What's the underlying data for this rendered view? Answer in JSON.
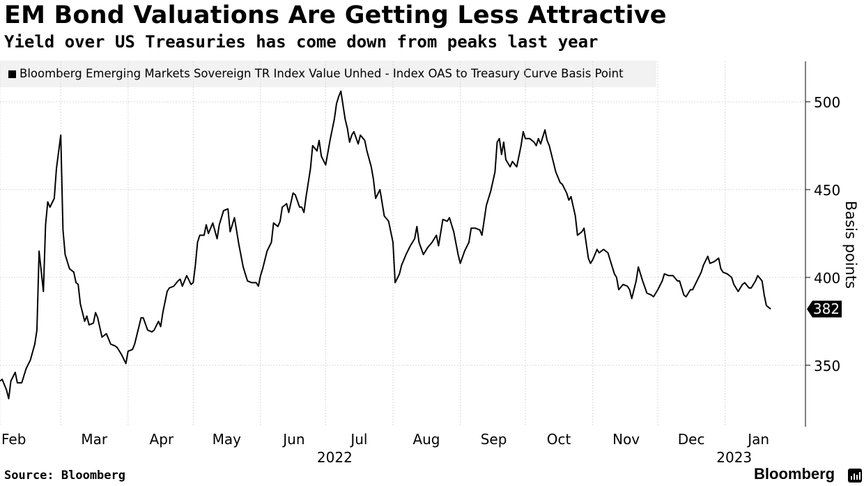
{
  "chart_data": {
    "type": "line",
    "title": "EM Bond Valuations Are Getting Less Attractive",
    "subtitle": "Yield over US Treasuries has come down from peaks last year",
    "ylabel": "Basis points",
    "ylim": [
      315,
      523
    ],
    "yticks": [
      350,
      400,
      450,
      500
    ],
    "grid": true,
    "legend_position": "top-left",
    "x_start": "2022-02-01",
    "x_end": "2023-02-07",
    "month_ticks": [
      {
        "date": "2022-02-01",
        "label": "Feb"
      },
      {
        "date": "2022-03-01",
        "label": "Mar"
      },
      {
        "date": "2022-04-01",
        "label": "Apr"
      },
      {
        "date": "2022-05-01",
        "label": "May"
      },
      {
        "date": "2022-06-01",
        "label": "Jun"
      },
      {
        "date": "2022-07-01",
        "label": "Jul"
      },
      {
        "date": "2022-08-01",
        "label": "Aug"
      },
      {
        "date": "2022-09-01",
        "label": "Sep"
      },
      {
        "date": "2022-10-01",
        "label": "Oct"
      },
      {
        "date": "2022-11-01",
        "label": "Nov"
      },
      {
        "date": "2022-12-01",
        "label": "Dec"
      },
      {
        "date": "2023-01-01",
        "label": "Jan"
      }
    ],
    "year_labels": [
      {
        "date": "2022-07-01",
        "label": "2022"
      },
      {
        "date": "2023-01-01",
        "label": "2023"
      }
    ],
    "last_value_label": "382",
    "series": [
      {
        "name": "Bloomberg Emerging Markets Sovereign TR Index Value Unhed - Index OAS to Treasury Curve Basis Point",
        "color": "#000000",
        "points": [
          [
            "2022-02-01",
            341
          ],
          [
            "2022-02-02",
            342
          ],
          [
            "2022-02-04",
            336
          ],
          [
            "2022-02-05",
            331
          ],
          [
            "2022-02-06",
            341
          ],
          [
            "2022-02-08",
            346
          ],
          [
            "2022-02-09",
            340
          ],
          [
            "2022-02-11",
            340
          ],
          [
            "2022-02-13",
            348
          ],
          [
            "2022-02-15",
            353
          ],
          [
            "2022-02-17",
            362
          ],
          [
            "2022-02-18",
            370
          ],
          [
            "2022-02-19",
            415
          ],
          [
            "2022-02-21",
            392
          ],
          [
            "2022-02-22",
            430
          ],
          [
            "2022-02-23",
            443
          ],
          [
            "2022-02-24",
            440
          ],
          [
            "2022-02-26",
            445
          ],
          [
            "2022-02-27",
            462
          ],
          [
            "2022-03-01",
            481
          ],
          [
            "2022-03-02",
            427
          ],
          [
            "2022-03-03",
            413
          ],
          [
            "2022-03-05",
            405
          ],
          [
            "2022-03-07",
            403
          ],
          [
            "2022-03-08",
            397
          ],
          [
            "2022-03-09",
            396
          ],
          [
            "2022-03-10",
            385
          ],
          [
            "2022-03-12",
            375
          ],
          [
            "2022-03-13",
            378
          ],
          [
            "2022-03-14",
            373
          ],
          [
            "2022-03-16",
            374
          ],
          [
            "2022-03-17",
            380
          ],
          [
            "2022-03-18",
            377
          ],
          [
            "2022-03-20",
            366
          ],
          [
            "2022-03-22",
            368
          ],
          [
            "2022-03-24",
            362
          ],
          [
            "2022-03-26",
            361
          ],
          [
            "2022-03-27",
            360
          ],
          [
            "2022-03-29",
            356
          ],
          [
            "2022-03-31",
            351
          ],
          [
            "2022-04-01",
            358
          ],
          [
            "2022-04-03",
            359
          ],
          [
            "2022-04-04",
            362
          ],
          [
            "2022-04-06",
            372
          ],
          [
            "2022-04-07",
            377
          ],
          [
            "2022-04-08",
            377
          ],
          [
            "2022-04-10",
            370
          ],
          [
            "2022-04-12",
            369
          ],
          [
            "2022-04-13",
            370
          ],
          [
            "2022-04-15",
            375
          ],
          [
            "2022-04-16",
            372
          ],
          [
            "2022-04-17",
            380
          ],
          [
            "2022-04-19",
            392
          ],
          [
            "2022-04-20",
            394
          ],
          [
            "2022-04-22",
            395
          ],
          [
            "2022-04-24",
            398
          ],
          [
            "2022-04-25",
            399
          ],
          [
            "2022-04-26",
            395
          ],
          [
            "2022-04-28",
            401
          ],
          [
            "2022-04-30",
            396
          ],
          [
            "2022-05-01",
            397
          ],
          [
            "2022-05-02",
            407
          ],
          [
            "2022-05-03",
            420
          ],
          [
            "2022-05-04",
            424
          ],
          [
            "2022-05-06",
            424
          ],
          [
            "2022-05-07",
            430
          ],
          [
            "2022-05-08",
            425
          ],
          [
            "2022-05-10",
            431
          ],
          [
            "2022-05-12",
            422
          ],
          [
            "2022-05-13",
            430
          ],
          [
            "2022-05-15",
            438
          ],
          [
            "2022-05-17",
            439
          ],
          [
            "2022-05-18",
            426
          ],
          [
            "2022-05-20",
            434
          ],
          [
            "2022-05-22",
            419
          ],
          [
            "2022-05-24",
            406
          ],
          [
            "2022-05-26",
            398
          ],
          [
            "2022-05-28",
            397
          ],
          [
            "2022-05-30",
            397
          ],
          [
            "2022-05-31",
            395
          ],
          [
            "2022-06-01",
            401
          ],
          [
            "2022-06-02",
            405
          ],
          [
            "2022-06-04",
            415
          ],
          [
            "2022-06-06",
            420
          ],
          [
            "2022-06-07",
            431
          ],
          [
            "2022-06-09",
            429
          ],
          [
            "2022-06-10",
            432
          ],
          [
            "2022-06-11",
            440
          ],
          [
            "2022-06-13",
            442
          ],
          [
            "2022-06-14",
            437
          ],
          [
            "2022-06-16",
            448
          ],
          [
            "2022-06-17",
            447
          ],
          [
            "2022-06-19",
            440
          ],
          [
            "2022-06-20",
            440
          ],
          [
            "2022-06-21",
            437
          ],
          [
            "2022-06-22",
            446
          ],
          [
            "2022-06-24",
            462
          ],
          [
            "2022-06-25",
            475
          ],
          [
            "2022-06-27",
            472
          ],
          [
            "2022-06-28",
            478
          ],
          [
            "2022-06-29",
            469
          ],
          [
            "2022-07-01",
            464
          ],
          [
            "2022-07-03",
            478
          ],
          [
            "2022-07-05",
            490
          ],
          [
            "2022-07-06",
            499
          ],
          [
            "2022-07-07",
            503
          ],
          [
            "2022-07-08",
            506
          ],
          [
            "2022-07-10",
            490
          ],
          [
            "2022-07-11",
            485
          ],
          [
            "2022-07-12",
            477
          ],
          [
            "2022-07-13",
            481
          ],
          [
            "2022-07-14",
            483
          ],
          [
            "2022-07-16",
            476
          ],
          [
            "2022-07-17",
            481
          ],
          [
            "2022-07-19",
            478
          ],
          [
            "2022-07-20",
            472
          ],
          [
            "2022-07-22",
            463
          ],
          [
            "2022-07-23",
            456
          ],
          [
            "2022-07-24",
            445
          ],
          [
            "2022-07-26",
            450
          ],
          [
            "2022-07-28",
            435
          ],
          [
            "2022-07-30",
            432
          ],
          [
            "2022-08-01",
            420
          ],
          [
            "2022-08-02",
            397
          ],
          [
            "2022-08-04",
            402
          ],
          [
            "2022-08-05",
            407
          ],
          [
            "2022-08-07",
            413
          ],
          [
            "2022-08-09",
            418
          ],
          [
            "2022-08-11",
            422
          ],
          [
            "2022-08-12",
            429
          ],
          [
            "2022-08-13",
            420
          ],
          [
            "2022-08-15",
            413
          ],
          [
            "2022-08-17",
            417
          ],
          [
            "2022-08-19",
            420
          ],
          [
            "2022-08-21",
            424
          ],
          [
            "2022-08-22",
            418
          ],
          [
            "2022-08-24",
            433
          ],
          [
            "2022-08-26",
            432
          ],
          [
            "2022-08-27",
            434
          ],
          [
            "2022-08-29",
            426
          ],
          [
            "2022-08-31",
            413
          ],
          [
            "2022-09-01",
            408
          ],
          [
            "2022-09-03",
            415
          ],
          [
            "2022-09-05",
            420
          ],
          [
            "2022-09-06",
            428
          ],
          [
            "2022-09-08",
            428
          ],
          [
            "2022-09-10",
            427
          ],
          [
            "2022-09-11",
            424
          ],
          [
            "2022-09-13",
            441
          ],
          [
            "2022-09-15",
            449
          ],
          [
            "2022-09-17",
            460
          ],
          [
            "2022-09-18",
            477
          ],
          [
            "2022-09-19",
            479
          ],
          [
            "2022-09-20",
            470
          ],
          [
            "2022-09-21",
            477
          ],
          [
            "2022-09-22",
            467
          ],
          [
            "2022-09-24",
            463
          ],
          [
            "2022-09-25",
            466
          ],
          [
            "2022-09-27",
            463
          ],
          [
            "2022-09-29",
            475
          ],
          [
            "2022-09-30",
            483
          ],
          [
            "2022-10-01",
            479
          ],
          [
            "2022-10-03",
            479
          ],
          [
            "2022-10-05",
            477
          ],
          [
            "2022-10-06",
            475
          ],
          [
            "2022-10-07",
            479
          ],
          [
            "2022-10-08",
            476
          ],
          [
            "2022-10-10",
            484
          ],
          [
            "2022-10-11",
            478
          ],
          [
            "2022-10-12",
            475
          ],
          [
            "2022-10-14",
            465
          ],
          [
            "2022-10-15",
            460
          ],
          [
            "2022-10-17",
            454
          ],
          [
            "2022-10-18",
            453
          ],
          [
            "2022-10-20",
            448
          ],
          [
            "2022-10-21",
            444
          ],
          [
            "2022-10-22",
            446
          ],
          [
            "2022-10-24",
            435
          ],
          [
            "2022-10-25",
            424
          ],
          [
            "2022-10-27",
            426
          ],
          [
            "2022-10-28",
            428
          ],
          [
            "2022-10-30",
            411
          ],
          [
            "2022-10-31",
            408
          ],
          [
            "2022-11-01",
            410
          ],
          [
            "2022-11-03",
            416
          ],
          [
            "2022-11-04",
            414
          ],
          [
            "2022-11-06",
            416
          ],
          [
            "2022-11-08",
            414
          ],
          [
            "2022-11-09",
            410
          ],
          [
            "2022-11-11",
            402
          ],
          [
            "2022-11-12",
            400
          ],
          [
            "2022-11-13",
            393
          ],
          [
            "2022-11-15",
            396
          ],
          [
            "2022-11-17",
            395
          ],
          [
            "2022-11-18",
            393
          ],
          [
            "2022-11-19",
            388
          ],
          [
            "2022-11-21",
            398
          ],
          [
            "2022-11-22",
            406
          ],
          [
            "2022-11-24",
            398
          ],
          [
            "2022-11-26",
            391
          ],
          [
            "2022-11-28",
            390
          ],
          [
            "2022-11-29",
            389
          ],
          [
            "2022-12-01",
            393
          ],
          [
            "2022-12-03",
            398
          ],
          [
            "2022-12-04",
            402
          ],
          [
            "2022-12-06",
            401
          ],
          [
            "2022-12-08",
            401
          ],
          [
            "2022-12-10",
            398
          ],
          [
            "2022-12-11",
            398
          ],
          [
            "2022-12-13",
            390
          ],
          [
            "2022-12-14",
            389
          ],
          [
            "2022-12-16",
            393
          ],
          [
            "2022-12-17",
            393
          ],
          [
            "2022-12-19",
            398
          ],
          [
            "2022-12-21",
            403
          ],
          [
            "2022-12-22",
            407
          ],
          [
            "2022-12-24",
            412
          ],
          [
            "2022-12-25",
            408
          ],
          [
            "2022-12-27",
            409
          ],
          [
            "2022-12-29",
            411
          ],
          [
            "2022-12-30",
            405
          ],
          [
            "2022-12-31",
            403
          ],
          [
            "2023-01-02",
            402
          ],
          [
            "2023-01-04",
            400
          ],
          [
            "2023-01-05",
            396
          ],
          [
            "2023-01-07",
            392
          ],
          [
            "2023-01-09",
            396
          ],
          [
            "2023-01-10",
            397
          ],
          [
            "2023-01-12",
            394
          ],
          [
            "2023-01-13",
            394
          ],
          [
            "2023-01-15",
            398
          ],
          [
            "2023-01-16",
            401
          ],
          [
            "2023-01-18",
            398
          ],
          [
            "2023-01-19",
            390
          ],
          [
            "2023-01-20",
            384
          ],
          [
            "2023-01-22",
            382
          ]
        ]
      }
    ]
  },
  "footer": {
    "source": "Source: Bloomberg",
    "brand": "Bloomberg"
  },
  "icons": {
    "brand_icon": "bar-chart-icon"
  }
}
